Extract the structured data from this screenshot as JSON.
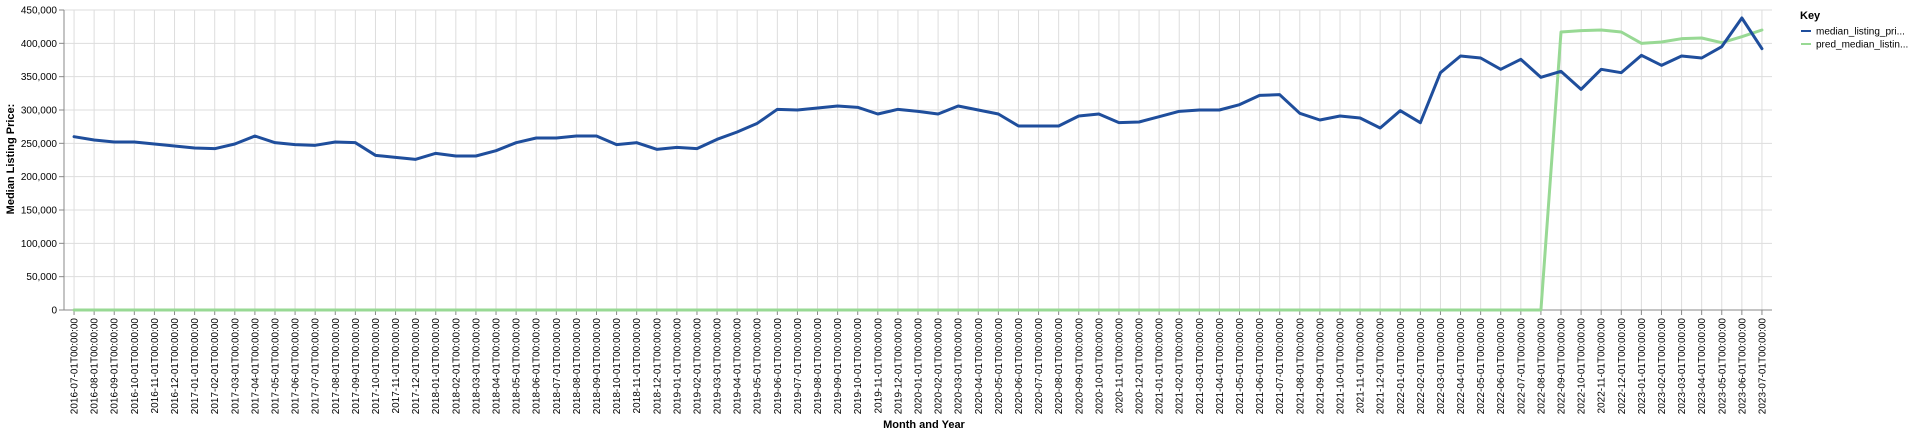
{
  "chart_data": {
    "type": "line",
    "xlabel": "Month and Year",
    "ylabel": "Median Listing Price:",
    "ylim": [
      0,
      450000
    ],
    "yticks": [
      "0",
      "50,000",
      "100,000",
      "150,000",
      "200,000",
      "250,000",
      "300,000",
      "350,000",
      "400,000",
      "450,000"
    ],
    "ytick_values": [
      0,
      50000,
      100000,
      150000,
      200000,
      250000,
      300000,
      350000,
      400000,
      450000
    ],
    "grid": true,
    "legend_title": "Key",
    "legend_position": "right",
    "x": [
      "2016-07-01T00:00:00",
      "2016-08-01T00:00:00",
      "2016-09-01T00:00:00",
      "2016-10-01T00:00:00",
      "2016-11-01T00:00:00",
      "2016-12-01T00:00:00",
      "2017-01-01T00:00:00",
      "2017-02-01T00:00:00",
      "2017-03-01T00:00:00",
      "2017-04-01T00:00:00",
      "2017-05-01T00:00:00",
      "2017-06-01T00:00:00",
      "2017-07-01T00:00:00",
      "2017-08-01T00:00:00",
      "2017-09-01T00:00:00",
      "2017-10-01T00:00:00",
      "2017-11-01T00:00:00",
      "2017-12-01T00:00:00",
      "2018-01-01T00:00:00",
      "2018-02-01T00:00:00",
      "2018-03-01T00:00:00",
      "2018-04-01T00:00:00",
      "2018-05-01T00:00:00",
      "2018-06-01T00:00:00",
      "2018-07-01T00:00:00",
      "2018-08-01T00:00:00",
      "2018-09-01T00:00:00",
      "2018-10-01T00:00:00",
      "2018-11-01T00:00:00",
      "2018-12-01T00:00:00",
      "2019-01-01T00:00:00",
      "2019-02-01T00:00:00",
      "2019-03-01T00:00:00",
      "2019-04-01T00:00:00",
      "2019-05-01T00:00:00",
      "2019-06-01T00:00:00",
      "2019-07-01T00:00:00",
      "2019-08-01T00:00:00",
      "2019-09-01T00:00:00",
      "2019-10-01T00:00:00",
      "2019-11-01T00:00:00",
      "2019-12-01T00:00:00",
      "2020-01-01T00:00:00",
      "2020-02-01T00:00:00",
      "2020-03-01T00:00:00",
      "2020-04-01T00:00:00",
      "2020-05-01T00:00:00",
      "2020-06-01T00:00:00",
      "2020-07-01T00:00:00",
      "2020-08-01T00:00:00",
      "2020-09-01T00:00:00",
      "2020-10-01T00:00:00",
      "2020-11-01T00:00:00",
      "2020-12-01T00:00:00",
      "2021-01-01T00:00:00",
      "2021-02-01T00:00:00",
      "2021-03-01T00:00:00",
      "2021-04-01T00:00:00",
      "2021-05-01T00:00:00",
      "2021-06-01T00:00:00",
      "2021-07-01T00:00:00",
      "2021-08-01T00:00:00",
      "2021-09-01T00:00:00",
      "2021-10-01T00:00:00",
      "2021-11-01T00:00:00",
      "2021-12-01T00:00:00",
      "2022-01-01T00:00:00",
      "2022-02-01T00:00:00",
      "2022-03-01T00:00:00",
      "2022-04-01T00:00:00",
      "2022-05-01T00:00:00",
      "2022-06-01T00:00:00",
      "2022-07-01T00:00:00",
      "2022-08-01T00:00:00",
      "2022-09-01T00:00:00",
      "2022-10-01T00:00:00",
      "2022-11-01T00:00:00",
      "2022-12-01T00:00:00",
      "2023-01-01T00:00:00",
      "2023-02-01T00:00:00",
      "2023-03-01T00:00:00",
      "2023-04-01T00:00:00",
      "2023-05-01T00:00:00",
      "2023-06-01T00:00:00",
      "2023-07-01T00:00:00"
    ],
    "series": [
      {
        "name": "median_listing_pri...",
        "color": "#1f4e9c",
        "values": [
          260000,
          255000,
          252000,
          252000,
          249000,
          246000,
          243000,
          242000,
          249000,
          261000,
          251000,
          248000,
          247000,
          252000,
          251000,
          232000,
          229000,
          226000,
          235000,
          231000,
          231000,
          239000,
          251000,
          258000,
          258000,
          261000,
          261000,
          248000,
          251000,
          241000,
          244000,
          242000,
          256000,
          267000,
          280000,
          301000,
          300000,
          303000,
          306000,
          304000,
          294000,
          301000,
          298000,
          294000,
          306000,
          300000,
          294000,
          276000,
          276000,
          276000,
          291000,
          294000,
          281000,
          282000,
          290000,
          298000,
          300000,
          300000,
          308000,
          322000,
          323000,
          295000,
          285000,
          291000,
          288000,
          273000,
          299000,
          281000,
          356000,
          381000,
          378000,
          361000,
          376000,
          349000,
          358000,
          331000,
          361000,
          356000,
          382000,
          367000,
          381000,
          378000,
          395000,
          438000,
          392000
        ]
      },
      {
        "name": "pred_median_listin...",
        "color": "#98d994",
        "values": [
          0,
          0,
          0,
          0,
          0,
          0,
          0,
          0,
          0,
          0,
          0,
          0,
          0,
          0,
          0,
          0,
          0,
          0,
          0,
          0,
          0,
          0,
          0,
          0,
          0,
          0,
          0,
          0,
          0,
          0,
          0,
          0,
          0,
          0,
          0,
          0,
          0,
          0,
          0,
          0,
          0,
          0,
          0,
          0,
          0,
          0,
          0,
          0,
          0,
          0,
          0,
          0,
          0,
          0,
          0,
          0,
          0,
          0,
          0,
          0,
          0,
          0,
          0,
          0,
          0,
          0,
          0,
          0,
          0,
          0,
          0,
          0,
          0,
          0,
          417000,
          419000,
          420000,
          417000,
          400000,
          402000,
          407000,
          408000,
          401000,
          410000,
          420000
        ]
      }
    ]
  }
}
